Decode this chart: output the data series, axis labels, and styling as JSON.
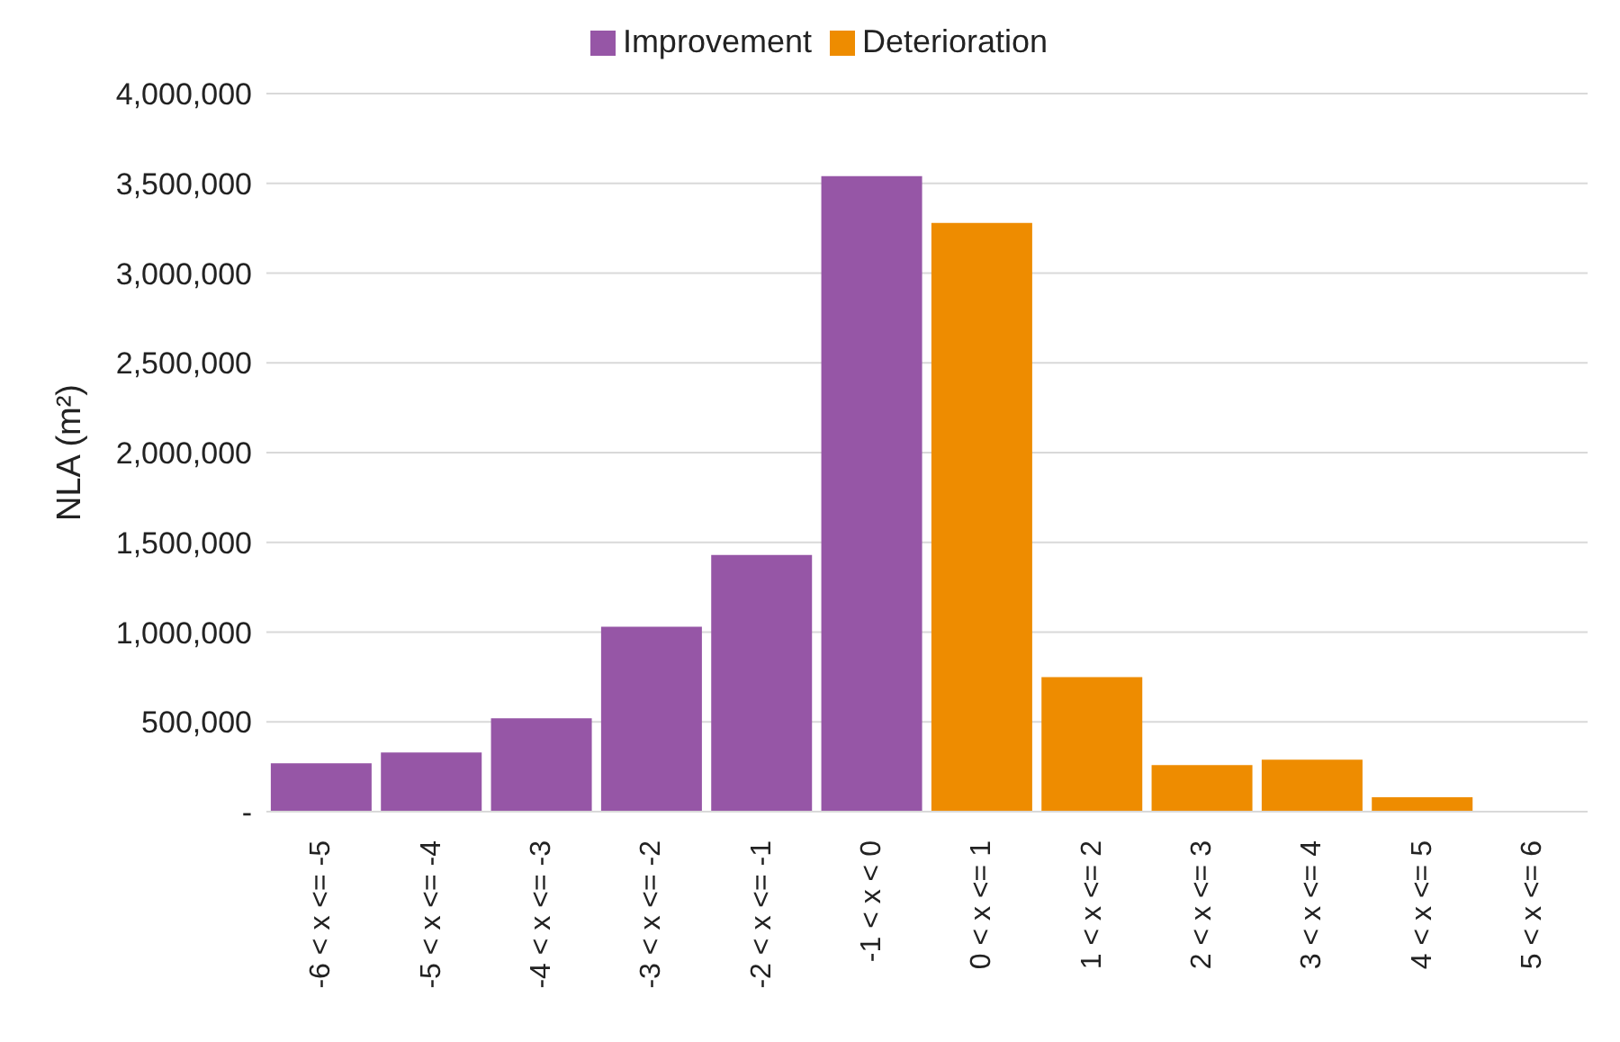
{
  "chart_data": {
    "type": "bar",
    "ylabel": "NLA (m²)",
    "stacked": true,
    "categories": [
      "-6 < x <= -5",
      "-5 < x <= -4",
      "-4 < x <= -3",
      "-3 < x <= -2",
      "-2 < x <= -1",
      "-1 < x < 0",
      "0 < x <= 1",
      "1 < x <= 2",
      "2 < x <= 3",
      "3 < x <= 4",
      "4 < x <= 5",
      "5 < x <= 6"
    ],
    "series": [
      {
        "name": "Improvement",
        "color": "#9656a6",
        "values": [
          270000,
          330000,
          520000,
          1030000,
          1430000,
          3540000,
          null,
          null,
          null,
          null,
          null,
          null
        ]
      },
      {
        "name": "Deterioration",
        "color": "#ee8c00",
        "values": [
          null,
          null,
          null,
          null,
          null,
          null,
          3280000,
          750000,
          260000,
          290000,
          80000,
          0
        ]
      }
    ],
    "ylim": [
      0,
      4000000
    ],
    "yticks": [
      {
        "value": 0,
        "label": "-"
      },
      {
        "value": 500000,
        "label": "500,000"
      },
      {
        "value": 1000000,
        "label": "1,000,000"
      },
      {
        "value": 1500000,
        "label": "1,500,000"
      },
      {
        "value": 2000000,
        "label": "2,000,000"
      },
      {
        "value": 2500000,
        "label": "2,500,000"
      },
      {
        "value": 3000000,
        "label": "3,000,000"
      },
      {
        "value": 3500000,
        "label": "3,500,000"
      },
      {
        "value": 4000000,
        "label": "4,000,000"
      }
    ],
    "grid": "y",
    "legend": "top"
  }
}
